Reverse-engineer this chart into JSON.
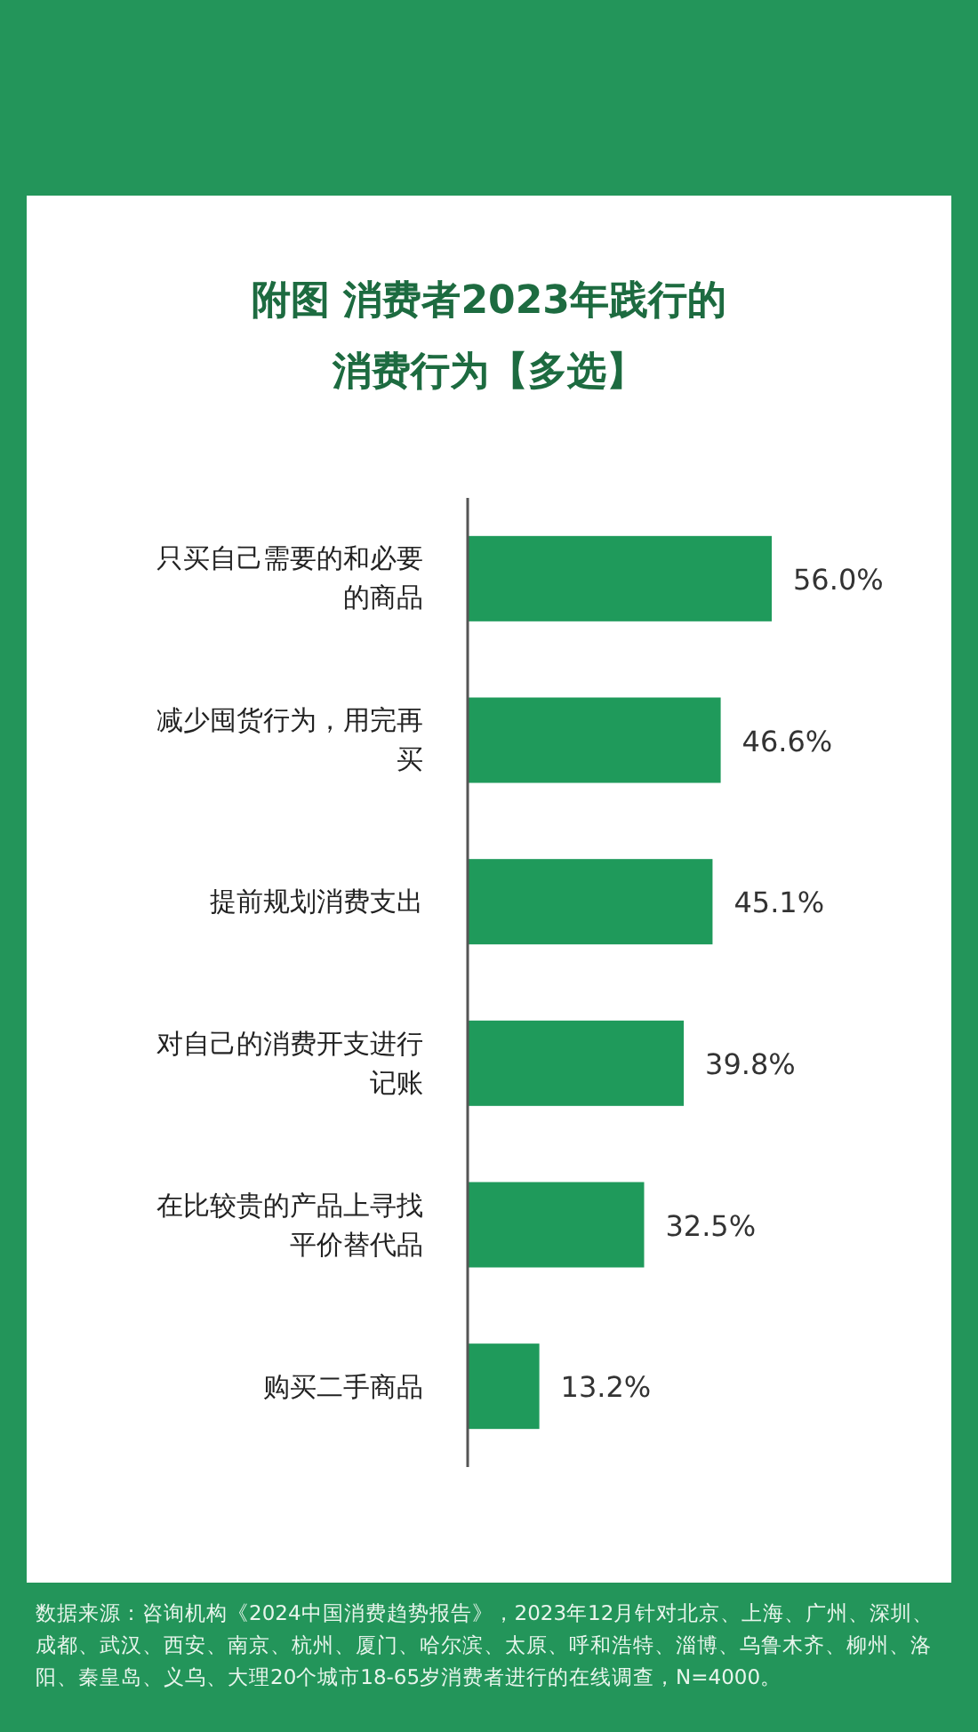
{
  "chart_data": {
    "type": "bar",
    "orientation": "horizontal",
    "color": "#1f9a5b",
    "title": "附图  消费者2023年践行的消费行为【多选】",
    "categories": [
      "只买自己需要的和必要的商品",
      "减少囤货行为，用完再买",
      "提前规划消费支出",
      "对自己的消费开支进行记账",
      "在比较贵的产品上寻找平价替代品",
      "购买二手商品"
    ],
    "values": [
      56.0,
      46.6,
      45.1,
      39.8,
      32.5,
      13.2
    ],
    "value_labels": [
      "56.0%",
      "46.6%",
      "45.1%",
      "39.8%",
      "32.5%",
      "13.2%"
    ],
    "annotations": [
      "数据来源：咨询机构《2024中国消费趋势报告》，2023年12月针对北京、上海、广州、深圳、成都、武汉、西安、南京、杭州、厦门、哈尔滨、太原、呼和浩特、淄博、乌鲁木齐、柳州、洛阳、秦皇岛、义乌、大理20个城市18-65岁消费者进行的在线调查，N=4000。"
    ]
  }
}
